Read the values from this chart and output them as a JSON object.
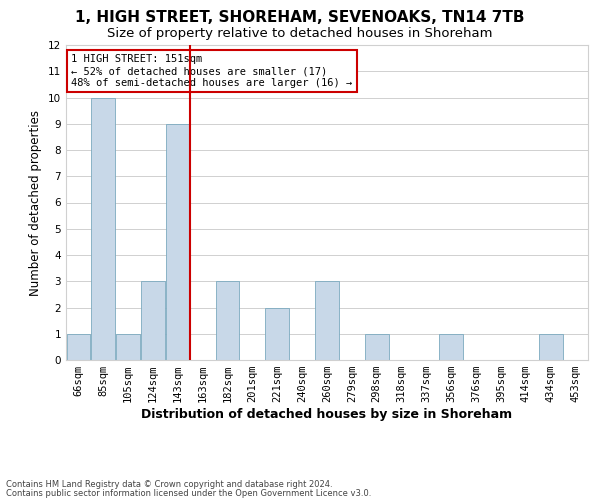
{
  "title": "1, HIGH STREET, SHOREHAM, SEVENOAKS, TN14 7TB",
  "subtitle": "Size of property relative to detached houses in Shoreham",
  "xlabel": "Distribution of detached houses by size in Shoreham",
  "ylabel": "Number of detached properties",
  "categories": [
    "66sqm",
    "85sqm",
    "105sqm",
    "124sqm",
    "143sqm",
    "163sqm",
    "182sqm",
    "201sqm",
    "221sqm",
    "240sqm",
    "260sqm",
    "279sqm",
    "298sqm",
    "318sqm",
    "337sqm",
    "356sqm",
    "376sqm",
    "395sqm",
    "414sqm",
    "434sqm",
    "453sqm"
  ],
  "values": [
    1,
    10,
    1,
    3,
    9,
    0,
    3,
    0,
    2,
    0,
    3,
    0,
    1,
    0,
    0,
    1,
    0,
    0,
    0,
    1,
    0
  ],
  "bar_color": "#c8d8e8",
  "bar_edge_color": "#7baabf",
  "ylim": [
    0,
    12
  ],
  "yticks": [
    0,
    1,
    2,
    3,
    4,
    5,
    6,
    7,
    8,
    9,
    10,
    11,
    12
  ],
  "annotation_text": "1 HIGH STREET: 151sqm\n← 52% of detached houses are smaller (17)\n48% of semi-detached houses are larger (16) →",
  "footer1": "Contains HM Land Registry data © Crown copyright and database right 2024.",
  "footer2": "Contains public sector information licensed under the Open Government Licence v3.0.",
  "grid_color": "#d0d0d0",
  "title_fontsize": 11,
  "subtitle_fontsize": 9.5,
  "ylabel_fontsize": 8.5,
  "xlabel_fontsize": 9,
  "tick_fontsize": 7.5,
  "ann_fontsize": 7.5,
  "footer_fontsize": 6,
  "annotation_box_edge": "#cc0000",
  "vline_color": "#cc0000",
  "vline_x": 4.5
}
